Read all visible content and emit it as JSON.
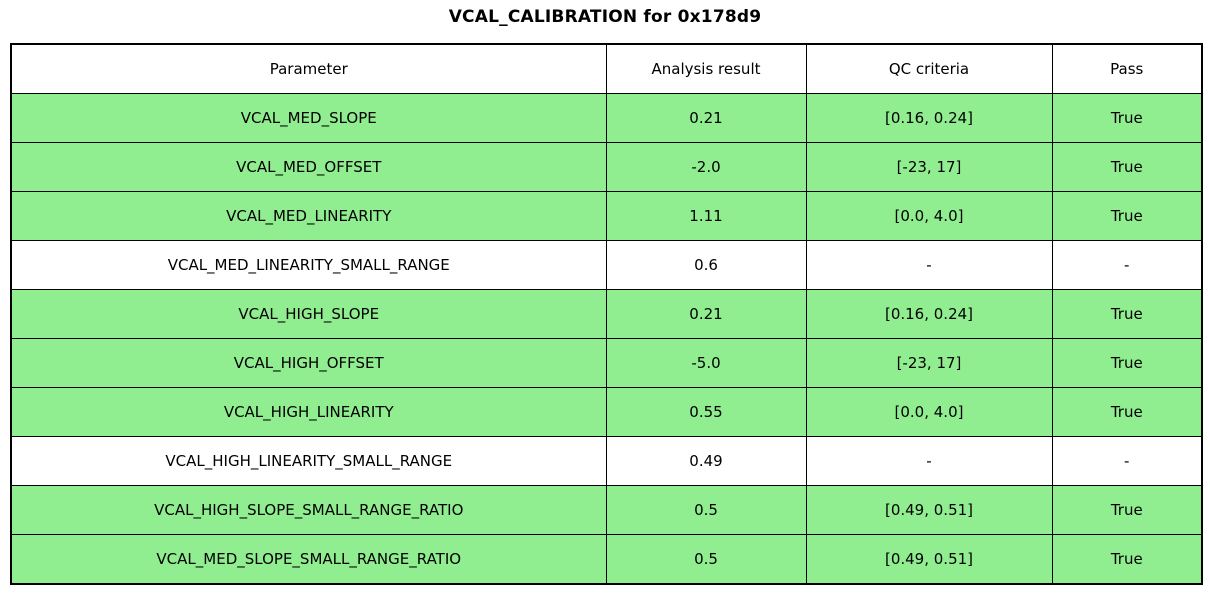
{
  "title": "VCAL_CALIBRATION for 0x178d9",
  "colors": {
    "pass_row_bg": "#90EE90",
    "neutral_row_bg": "#FFFFFF",
    "border": "#000000",
    "text": "#000000"
  },
  "table": {
    "columns": [
      "Parameter",
      "Analysis result",
      "QC criteria",
      "Pass"
    ],
    "rows": [
      {
        "parameter": "VCAL_MED_SLOPE",
        "analysis_result": "0.21",
        "qc_criteria": "[0.16, 0.24]",
        "pass": "True",
        "highlight": true
      },
      {
        "parameter": "VCAL_MED_OFFSET",
        "analysis_result": "-2.0",
        "qc_criteria": "[-23, 17]",
        "pass": "True",
        "highlight": true
      },
      {
        "parameter": "VCAL_MED_LINEARITY",
        "analysis_result": "1.11",
        "qc_criteria": "[0.0, 4.0]",
        "pass": "True",
        "highlight": true
      },
      {
        "parameter": "VCAL_MED_LINEARITY_SMALL_RANGE",
        "analysis_result": "0.6",
        "qc_criteria": "-",
        "pass": "-",
        "highlight": false
      },
      {
        "parameter": "VCAL_HIGH_SLOPE",
        "analysis_result": "0.21",
        "qc_criteria": "[0.16, 0.24]",
        "pass": "True",
        "highlight": true
      },
      {
        "parameter": "VCAL_HIGH_OFFSET",
        "analysis_result": "-5.0",
        "qc_criteria": "[-23, 17]",
        "pass": "True",
        "highlight": true
      },
      {
        "parameter": "VCAL_HIGH_LINEARITY",
        "analysis_result": "0.55",
        "qc_criteria": "[0.0, 4.0]",
        "pass": "True",
        "highlight": true
      },
      {
        "parameter": "VCAL_HIGH_LINEARITY_SMALL_RANGE",
        "analysis_result": "0.49",
        "qc_criteria": "-",
        "pass": "-",
        "highlight": false
      },
      {
        "parameter": "VCAL_HIGH_SLOPE_SMALL_RANGE_RATIO",
        "analysis_result": "0.5",
        "qc_criteria": "[0.49, 0.51]",
        "pass": "True",
        "highlight": true
      },
      {
        "parameter": "VCAL_MED_SLOPE_SMALL_RANGE_RATIO",
        "analysis_result": "0.5",
        "qc_criteria": "[0.49, 0.51]",
        "pass": "True",
        "highlight": true
      }
    ]
  },
  "chart_data": {
    "type": "table",
    "title": "VCAL_CALIBRATION for 0x178d9",
    "columns": [
      "Parameter",
      "Analysis result",
      "QC criteria",
      "Pass"
    ],
    "rows": [
      [
        "VCAL_MED_SLOPE",
        "0.21",
        "[0.16, 0.24]",
        "True"
      ],
      [
        "VCAL_MED_OFFSET",
        "-2.0",
        "[-23, 17]",
        "True"
      ],
      [
        "VCAL_MED_LINEARITY",
        "1.11",
        "[0.0, 4.0]",
        "True"
      ],
      [
        "VCAL_MED_LINEARITY_SMALL_RANGE",
        "0.6",
        "-",
        "-"
      ],
      [
        "VCAL_HIGH_SLOPE",
        "0.21",
        "[0.16, 0.24]",
        "True"
      ],
      [
        "VCAL_HIGH_OFFSET",
        "-5.0",
        "[-23, 17]",
        "True"
      ],
      [
        "VCAL_HIGH_LINEARITY",
        "0.55",
        "[0.0, 4.0]",
        "True"
      ],
      [
        "VCAL_HIGH_LINEARITY_SMALL_RANGE",
        "0.49",
        "-",
        "-"
      ],
      [
        "VCAL_HIGH_SLOPE_SMALL_RANGE_RATIO",
        "0.5",
        "[0.49, 0.51]",
        "True"
      ],
      [
        "VCAL_MED_SLOPE_SMALL_RANGE_RATIO",
        "0.5",
        "[0.49, 0.51]",
        "True"
      ]
    ],
    "row_highlighted": [
      true,
      true,
      true,
      false,
      true,
      true,
      true,
      false,
      true,
      true
    ],
    "layout_hints": {
      "highlight_color": "#90EE90",
      "neutral_color": "#FFFFFF",
      "grid": true,
      "cell_text_align": "center"
    }
  }
}
